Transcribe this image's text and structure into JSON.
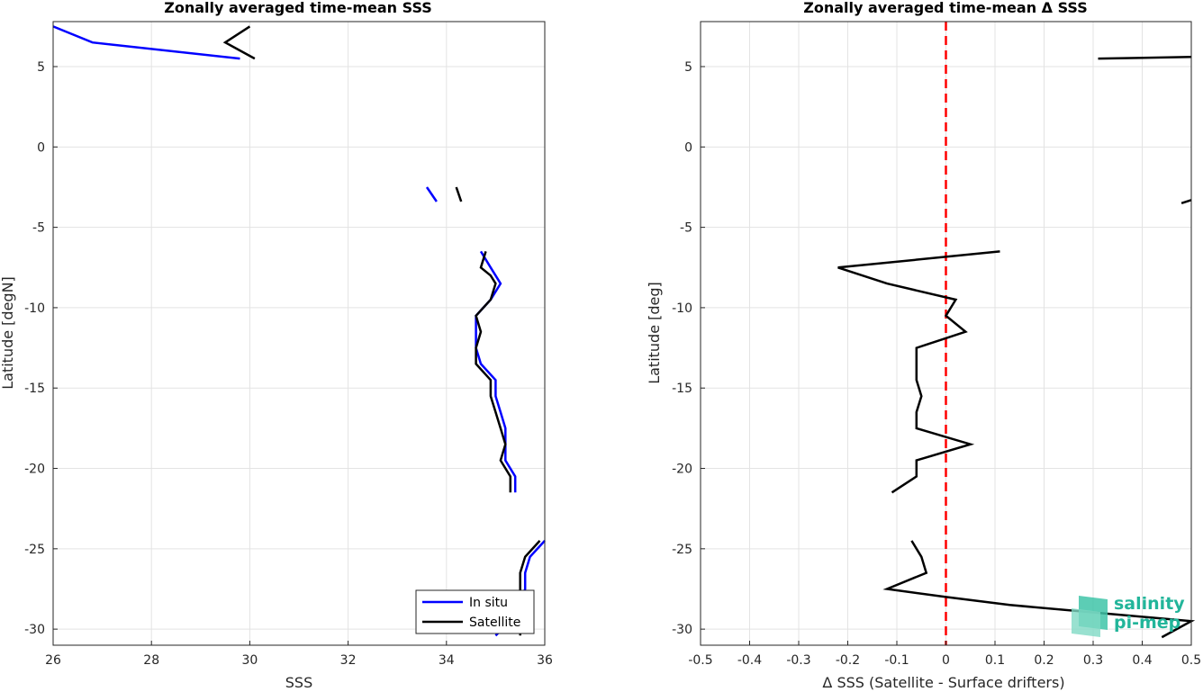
{
  "chart_data": [
    {
      "type": "line",
      "title": "Zonally averaged time-mean SSS",
      "xlabel": "SSS",
      "ylabel": "Latitude [degN]",
      "xlim": [
        26,
        36
      ],
      "ylim": [
        -31,
        7.8
      ],
      "xticks": [
        26,
        28,
        30,
        32,
        34,
        36
      ],
      "yticks": [
        5,
        0,
        -5,
        -10,
        -15,
        -20,
        -25,
        -30
      ],
      "grid": true,
      "legend": {
        "location": "bottom-right",
        "entries": [
          "In situ",
          "Satellite"
        ]
      },
      "series": [
        {
          "name": "In situ",
          "color": "#0000ff",
          "segments": [
            [
              [
                26.0,
                7.5
              ],
              [
                26.8,
                6.5
              ],
              [
                29.8,
                5.5
              ]
            ],
            [
              [
                33.6,
                -2.5
              ],
              [
                33.8,
                -3.4
              ]
            ],
            [
              [
                34.7,
                -6.5
              ],
              [
                34.9,
                -7.5
              ],
              [
                35.0,
                -8.0
              ],
              [
                35.1,
                -8.5
              ],
              [
                34.9,
                -9.5
              ],
              [
                34.6,
                -10.5
              ],
              [
                34.6,
                -11.5
              ],
              [
                34.6,
                -12.5
              ],
              [
                34.7,
                -13.5
              ],
              [
                35.0,
                -14.5
              ],
              [
                35.0,
                -15.5
              ],
              [
                35.1,
                -16.5
              ],
              [
                35.2,
                -17.5
              ],
              [
                35.2,
                -18.5
              ],
              [
                35.2,
                -19.5
              ],
              [
                35.4,
                -20.5
              ],
              [
                35.4,
                -21.5
              ]
            ],
            [
              [
                36.0,
                -24.5
              ],
              [
                35.7,
                -25.5
              ],
              [
                35.6,
                -26.5
              ],
              [
                35.6,
                -27.5
              ],
              [
                35.5,
                -28.5
              ],
              [
                35.3,
                -29.5
              ],
              [
                35.0,
                -30.4
              ]
            ]
          ]
        },
        {
          "name": "Satellite",
          "color": "#000000",
          "segments": [
            [
              [
                30.0,
                7.5
              ],
              [
                29.5,
                6.5
              ],
              [
                30.1,
                5.5
              ]
            ],
            [
              [
                34.2,
                -2.5
              ],
              [
                34.3,
                -3.4
              ]
            ],
            [
              [
                34.8,
                -6.5
              ],
              [
                34.7,
                -7.5
              ],
              [
                34.9,
                -8.0
              ],
              [
                35.0,
                -8.5
              ],
              [
                34.9,
                -9.5
              ],
              [
                34.6,
                -10.5
              ],
              [
                34.7,
                -11.5
              ],
              [
                34.6,
                -12.5
              ],
              [
                34.6,
                -13.5
              ],
              [
                34.9,
                -14.5
              ],
              [
                34.9,
                -15.5
              ],
              [
                35.0,
                -16.5
              ],
              [
                35.1,
                -17.5
              ],
              [
                35.2,
                -18.5
              ],
              [
                35.1,
                -19.5
              ],
              [
                35.3,
                -20.5
              ],
              [
                35.3,
                -21.5
              ]
            ],
            [
              [
                35.9,
                -24.5
              ],
              [
                35.6,
                -25.5
              ],
              [
                35.5,
                -26.5
              ],
              [
                35.5,
                -27.5
              ],
              [
                35.5,
                -28.5
              ],
              [
                35.5,
                -29.5
              ],
              [
                35.5,
                -30.4
              ]
            ]
          ]
        }
      ]
    },
    {
      "type": "line",
      "title": "Zonally averaged time-mean Δ SSS",
      "xlabel": "Δ SSS (Satellite - Surface drifters)",
      "ylabel": "Latitude [deg]",
      "xlim": [
        -0.5,
        0.5
      ],
      "ylim": [
        -31,
        7.8
      ],
      "xticks": [
        -0.5,
        -0.4,
        -0.3,
        -0.2,
        -0.1,
        0,
        0.1,
        0.2,
        0.3,
        0.4,
        0.5
      ],
      "yticks": [
        5,
        0,
        -5,
        -10,
        -15,
        -20,
        -25,
        -30
      ],
      "grid": true,
      "reference_line": {
        "x": 0,
        "color": "#ff0000",
        "style": "dashed"
      },
      "series": [
        {
          "color": "#000000",
          "segments": [
            [
              [
                0.31,
                5.5
              ],
              [
                0.5,
                5.6
              ]
            ],
            [
              [
                0.48,
                -3.5
              ],
              [
                0.5,
                -3.3
              ]
            ],
            [
              [
                0.11,
                -6.5
              ],
              [
                -0.22,
                -7.5
              ],
              [
                -0.12,
                -8.5
              ],
              [
                0.02,
                -9.5
              ],
              [
                0.0,
                -10.5
              ],
              [
                0.04,
                -11.5
              ],
              [
                -0.06,
                -12.5
              ],
              [
                -0.06,
                -13.5
              ],
              [
                -0.06,
                -14.5
              ],
              [
                -0.05,
                -15.5
              ],
              [
                -0.06,
                -16.5
              ],
              [
                -0.06,
                -17.5
              ],
              [
                0.05,
                -18.5
              ],
              [
                -0.06,
                -19.5
              ],
              [
                -0.06,
                -20.5
              ],
              [
                -0.11,
                -21.5
              ]
            ],
            [
              [
                -0.07,
                -24.5
              ],
              [
                -0.05,
                -25.5
              ],
              [
                -0.04,
                -26.5
              ],
              [
                -0.12,
                -27.5
              ],
              [
                0.0,
                -28.0
              ],
              [
                0.13,
                -28.5
              ],
              [
                0.5,
                -29.5
              ],
              [
                0.44,
                -30.5
              ]
            ]
          ]
        }
      ]
    }
  ],
  "logo": {
    "line1": "salinity",
    "line2": "pi-mep"
  }
}
